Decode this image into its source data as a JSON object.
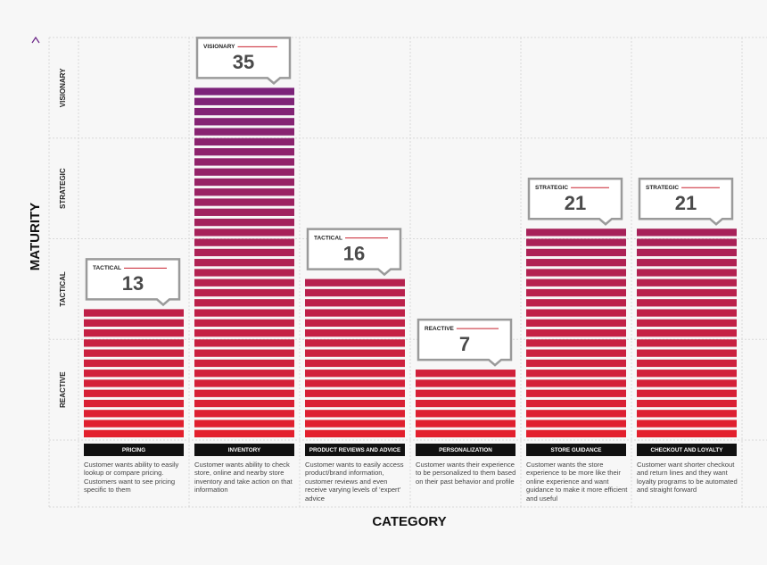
{
  "chart_data": {
    "type": "bar",
    "x_label": "CATEGORY",
    "y_label": "MATURITY",
    "categories": [
      "PRICING",
      "INVENTORY",
      "PRODUCT REVIEWS AND ADVICE",
      "PERSONALIZATION",
      "STORE GUIDANCE",
      "CHECKOUT AND LOYALTY"
    ],
    "values": [
      13,
      35,
      16,
      7,
      21,
      21
    ],
    "levels": [
      "TACTICAL",
      "VISIONARY",
      "TACTICAL",
      "REACTIVE",
      "STRATEGIC",
      "STRATEGIC"
    ],
    "descriptions": [
      "Customer wants ability to easily lookup or compare pricing. Customers want to see pricing specific to them",
      "Customer wants ability to check store, online and nearby store inventory and take action on that information",
      "Customer wants to easily access product/brand information, customer reviews and even receive varying levels of 'expert' advice",
      "Customer wants their experience to be personalized to them based on their past behavior and profile",
      "Customer wants the store experience to be more like their online experience and want guidance to make it more efficient and useful",
      "Customer want shorter checkout and return lines and they want loyalty programs to be automated and straight forward"
    ],
    "y_bands": [
      "REACTIVE",
      "TACTICAL",
      "STRATEGIC",
      "VISIONARY"
    ],
    "ylim": [
      0,
      40
    ],
    "yticks": [
      0,
      10,
      20,
      30,
      40
    ],
    "colors": [
      "#e3202d",
      "#6a2487"
    ],
    "grid": true
  }
}
